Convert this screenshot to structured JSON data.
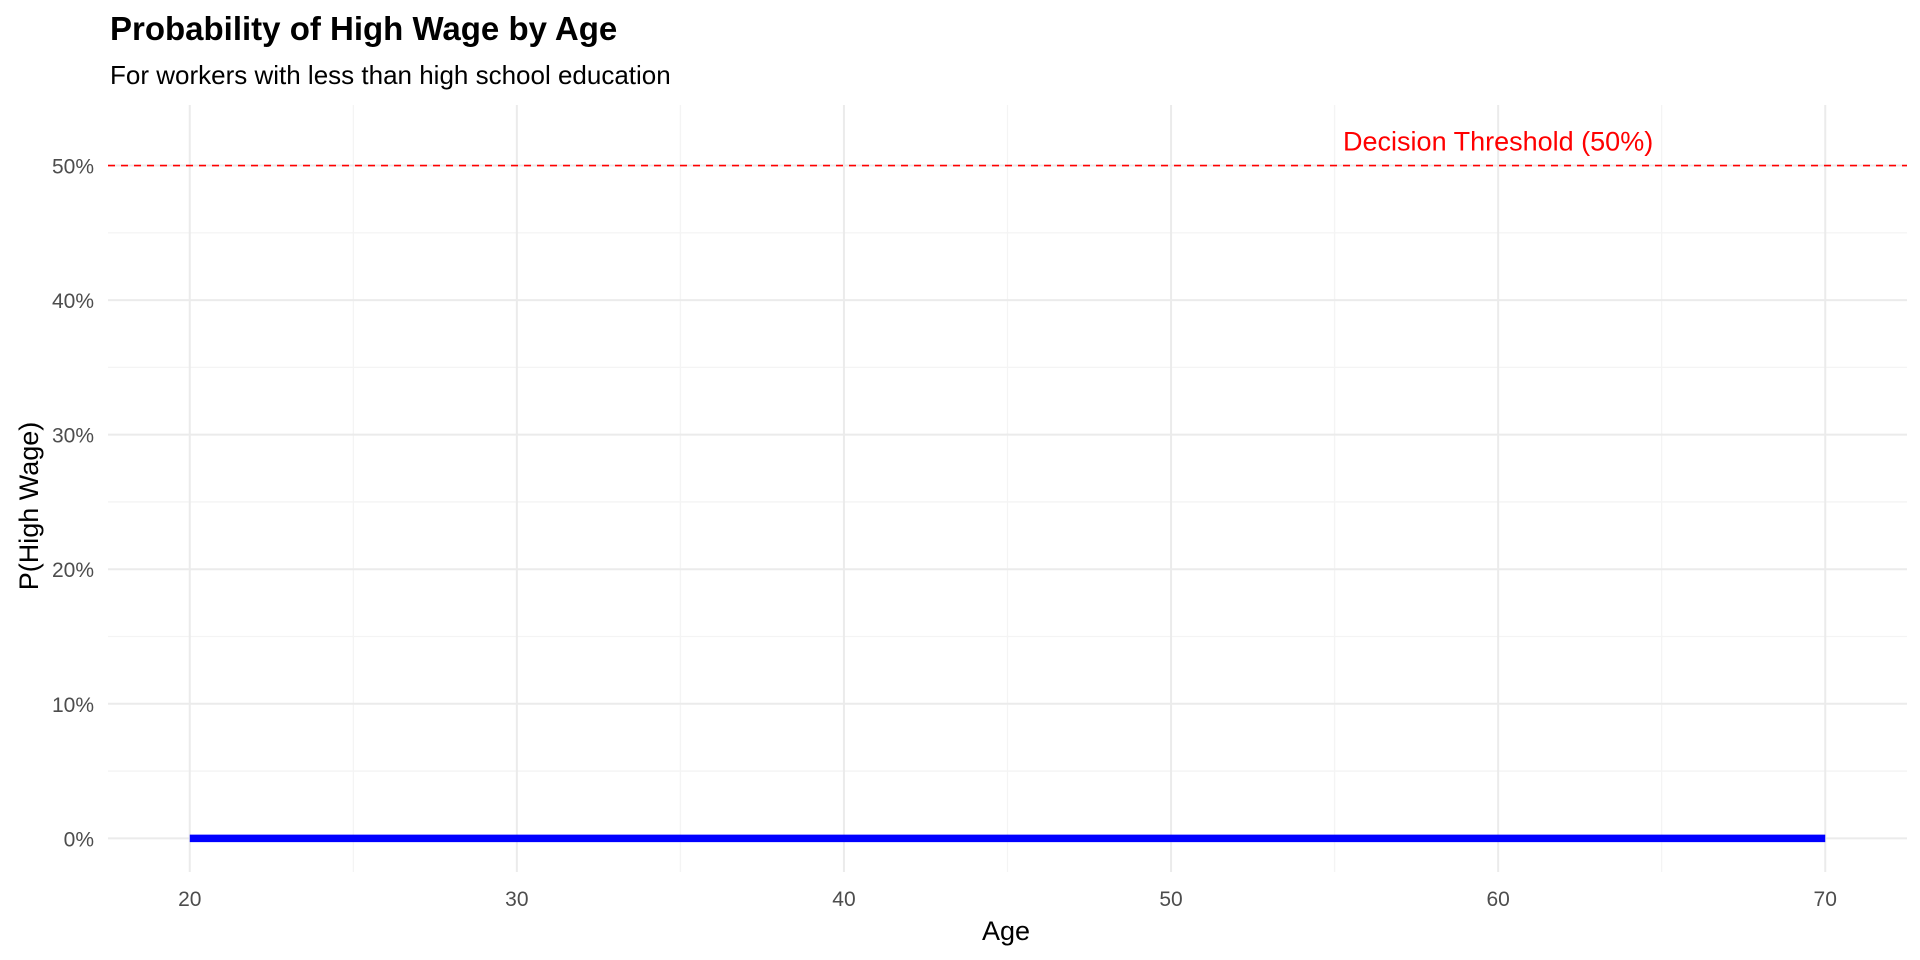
{
  "chart_data": {
    "type": "line",
    "title": "Probability of High Wage by Age",
    "subtitle": "For workers with less than high school education",
    "xlabel": "Age",
    "ylabel": "P(High Wage)",
    "xlim": [
      17.5,
      72.5
    ],
    "ylim": [
      -0.025,
      0.545
    ],
    "x_ticks": [
      20,
      30,
      40,
      50,
      60,
      70
    ],
    "x_tick_labels": [
      "20",
      "30",
      "40",
      "50",
      "60",
      "70"
    ],
    "y_ticks": [
      0,
      0.1,
      0.2,
      0.3,
      0.4,
      0.5
    ],
    "y_tick_labels": [
      "0%",
      "10%",
      "20%",
      "30%",
      "40%",
      "50%"
    ],
    "grid": true,
    "series": [
      {
        "color": "#0000ff",
        "x": [
          20,
          25,
          30,
          35,
          40,
          45,
          50,
          55,
          60,
          65,
          70
        ],
        "y": [
          0,
          0,
          0,
          0,
          0,
          0,
          0,
          0,
          0,
          0,
          0
        ]
      }
    ],
    "reference_line": {
      "y": 0.5,
      "color": "#ff0000",
      "style": "dashed"
    },
    "annotations": [
      {
        "text": "Decision Threshold (50%)",
        "x": 60,
        "y": 0.518,
        "color": "#ff0000"
      }
    ]
  }
}
